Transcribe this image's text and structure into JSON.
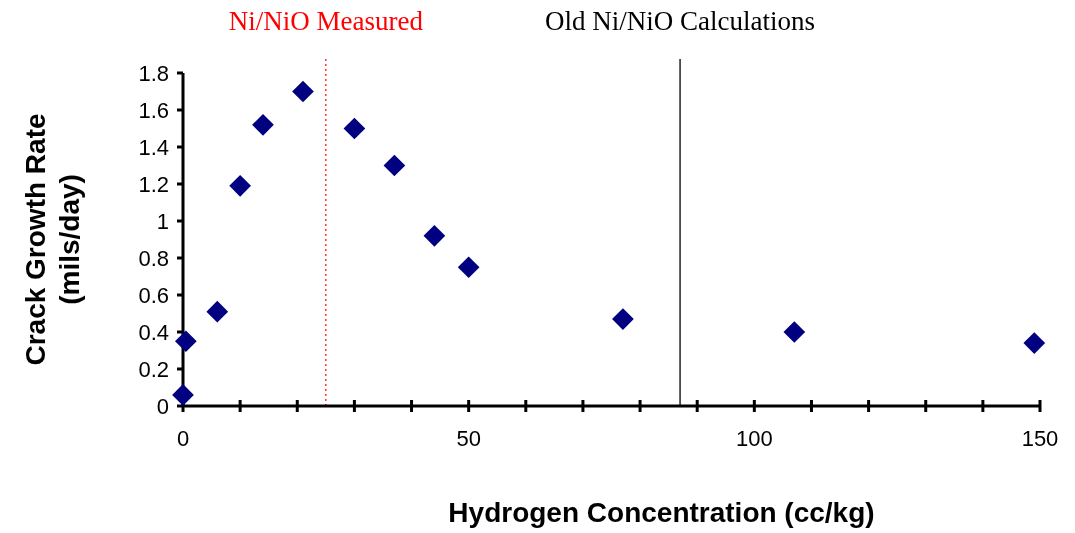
{
  "chart_data": {
    "type": "scatter",
    "xlabel": "Hydrogen Concentration (cc/kg)",
    "ylabel": "Crack Growth Rate (mils/day)",
    "x": [
      0,
      0.5,
      6,
      10,
      14,
      21,
      30,
      37,
      44,
      50,
      77,
      107,
      149
    ],
    "series": [
      {
        "color": "#000080",
        "values": [
          0.06,
          0.35,
          0.51,
          1.19,
          1.52,
          1.7,
          1.5,
          1.3,
          0.92,
          0.75,
          0.47,
          0.4,
          0.34
        ]
      }
    ],
    "marker": "diamond",
    "xlim": [
      0,
      150
    ],
    "xticks": [
      0,
      {
        "value": 10,
        "label": null
      },
      {
        "value": 20,
        "label": null
      },
      {
        "value": 30,
        "label": null
      },
      {
        "value": 40,
        "label": null
      },
      50,
      {
        "value": 60,
        "label": null
      },
      {
        "value": 70,
        "label": null
      },
      {
        "value": 80,
        "label": null
      },
      {
        "value": 90,
        "label": null
      },
      100,
      {
        "value": 110,
        "label": null
      },
      {
        "value": 120,
        "label": null
      },
      {
        "value": 130,
        "label": null
      },
      {
        "value": 140,
        "label": null
      },
      150
    ],
    "ylim": [
      0,
      1.8
    ],
    "yticks": [
      0,
      0.2,
      0.4,
      0.6,
      0.8,
      1,
      1.2,
      1.4,
      1.6,
      1.8
    ],
    "ref_lines": [
      {
        "axis": "x",
        "value": 25,
        "label": "Ni/NiO Measured",
        "color": "#ff0000",
        "line_style": "dotted"
      },
      {
        "axis": "x",
        "value": 87,
        "label": "Old Ni/NiO Calculations",
        "color": "#000000",
        "line_style": "solid"
      }
    ],
    "grid": false
  }
}
